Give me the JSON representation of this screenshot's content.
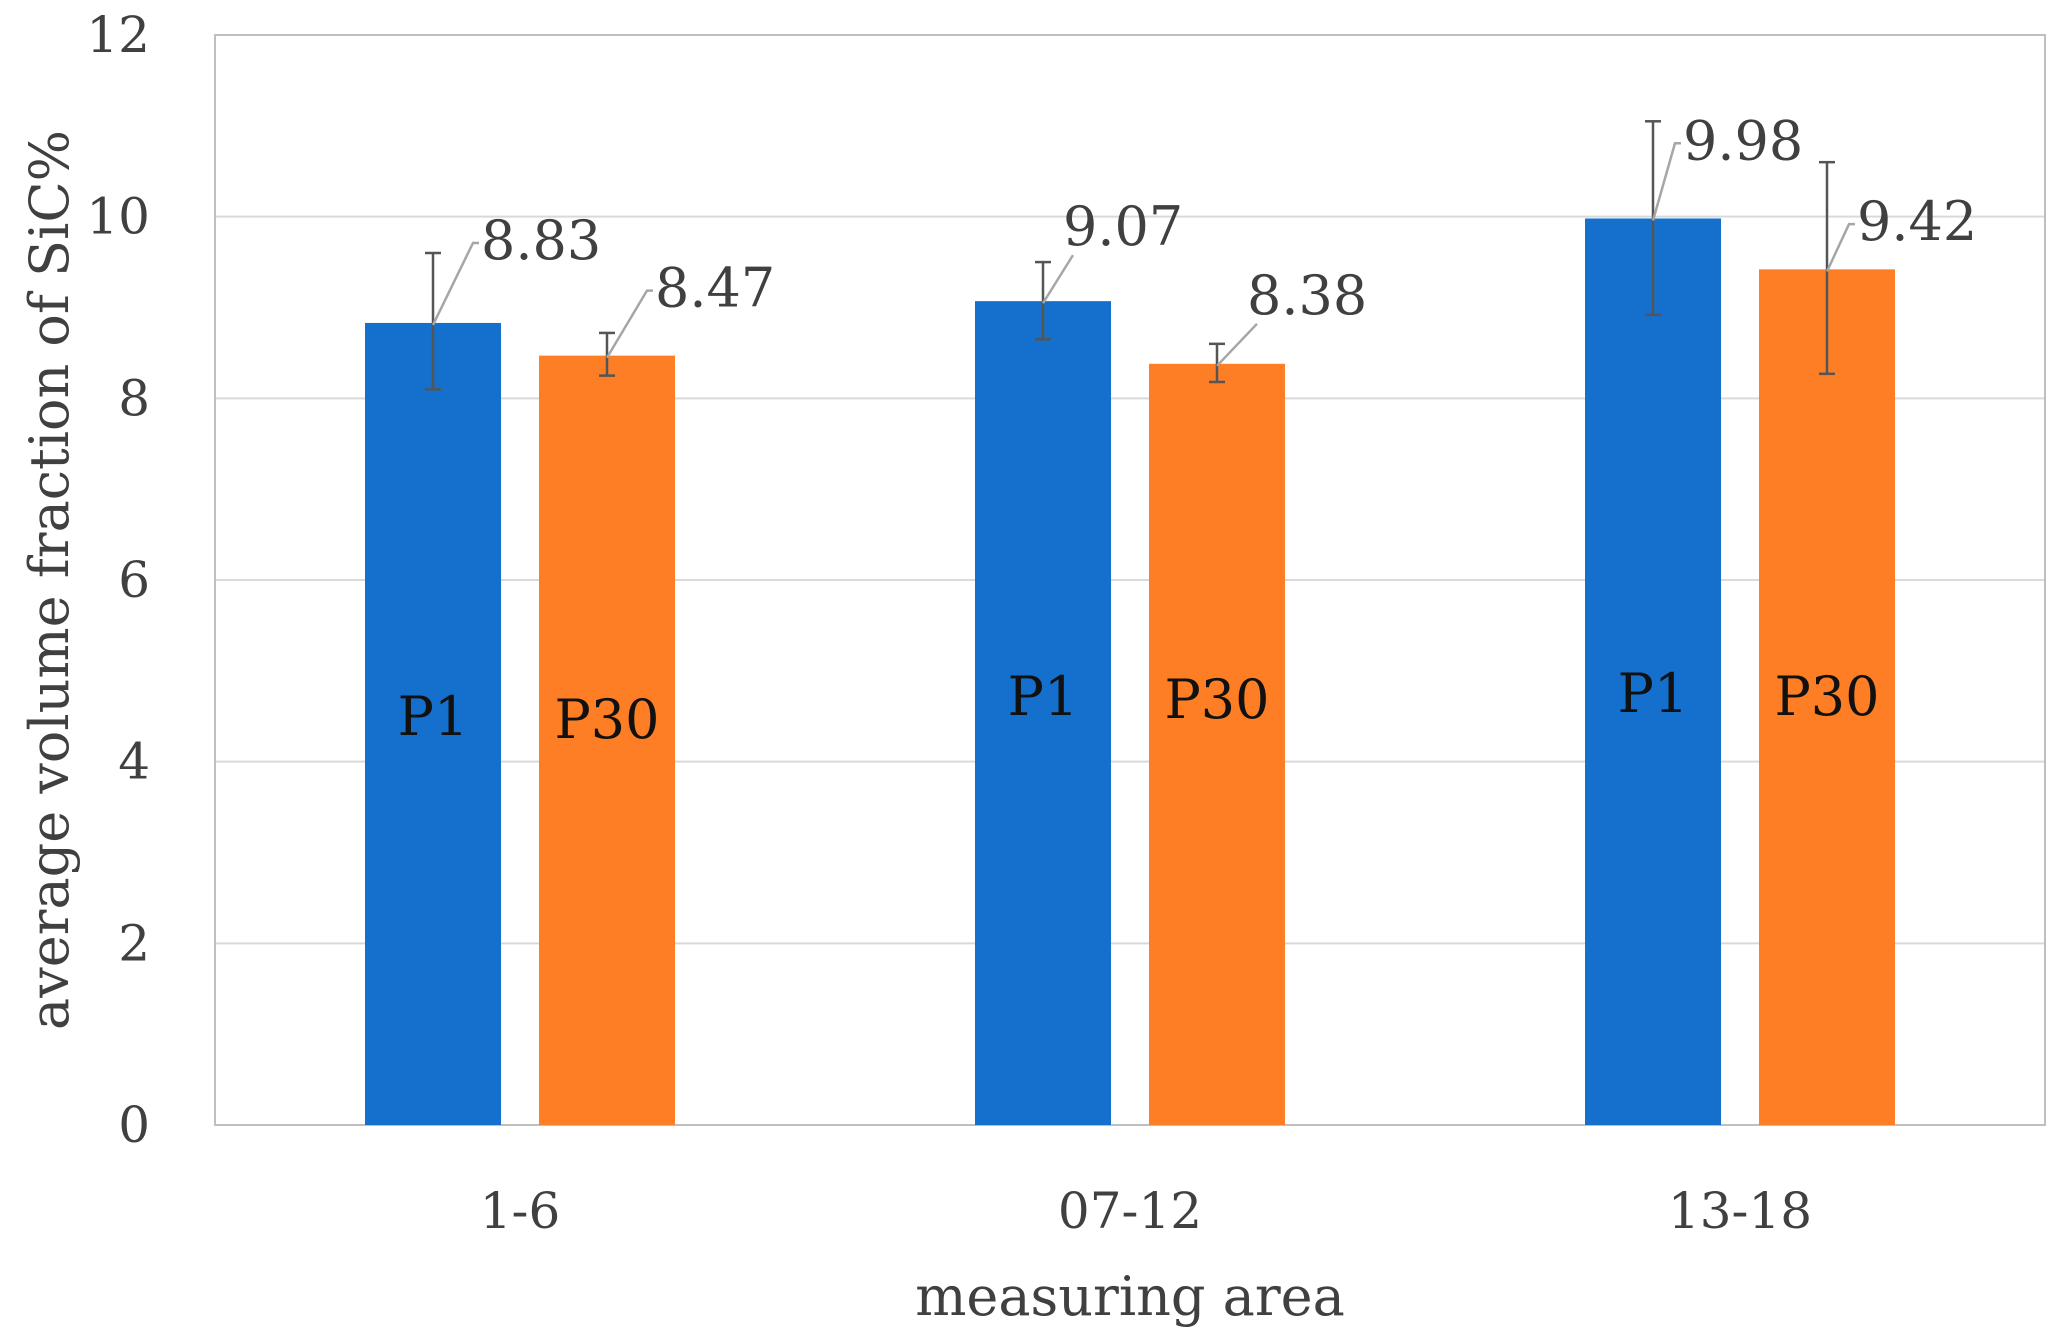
{
  "chart_data": {
    "type": "bar",
    "title": "",
    "xlabel": "measuring area",
    "ylabel": "average volume fraction of SiC%",
    "categories": [
      "1-6",
      "07-12",
      "13-18"
    ],
    "ylim": [
      0,
      12
    ],
    "yticks": [
      0,
      2,
      4,
      6,
      8,
      10,
      12
    ],
    "grid": true,
    "legend": "none",
    "series": [
      {
        "name": "P1",
        "color": "#1470cc",
        "values": [
          8.83,
          9.07,
          9.98
        ],
        "error_low": [
          8.1,
          8.65,
          8.92
        ],
        "error_high": [
          9.6,
          9.5,
          11.05
        ],
        "data_labels": [
          "8.83",
          "9.07",
          "9.98"
        ],
        "bar_labels": [
          "P1",
          "P1",
          "P1"
        ]
      },
      {
        "name": "P30",
        "color": "#fd7e24",
        "values": [
          8.47,
          8.38,
          9.42
        ],
        "error_low": [
          8.25,
          8.18,
          8.27
        ],
        "error_high": [
          8.72,
          8.6,
          10.6
        ],
        "data_labels": [
          "8.47",
          "8.38",
          "9.42"
        ],
        "bar_labels": [
          "P30",
          "P30",
          "P30"
        ]
      }
    ]
  }
}
